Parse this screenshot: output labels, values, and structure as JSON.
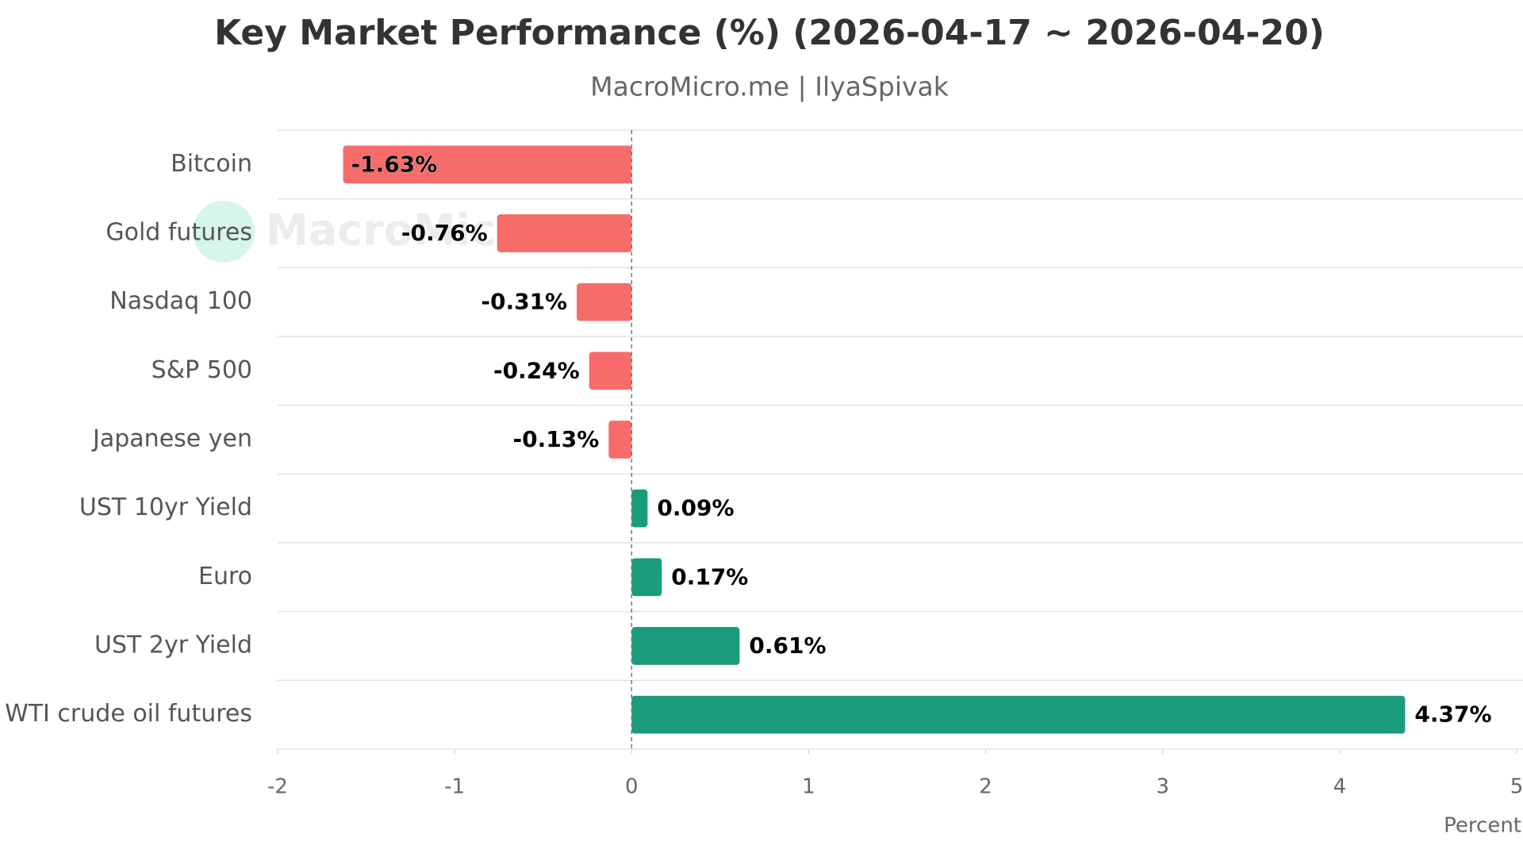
{
  "chart_data": {
    "type": "hbar",
    "title": "Key Market Performance (%) (2026-04-17 ~ 2026-04-20)",
    "subtitle": "MacroMicro.me | IlyaSpivak",
    "watermark": "MacroMicro",
    "x_label": "Percent",
    "categories": [
      "Bitcoin",
      "Gold futures",
      "Nasdaq 100",
      "S&P 500",
      "Japanese yen",
      "UST 10yr Yield",
      "Euro",
      "UST 2yr Yield",
      "WTI crude oil futures"
    ],
    "values": [
      -1.63,
      -0.76,
      -0.31,
      -0.24,
      -0.13,
      0.09,
      0.17,
      0.61,
      4.37
    ],
    "value_labels": [
      "-1.63%",
      "-0.76%",
      "-0.31%",
      "-0.24%",
      "-0.13%",
      "0.09%",
      "0.17%",
      "0.61%",
      "4.37%"
    ],
    "colors": [
      "#f76b6b",
      "#f76b6b",
      "#f76b6b",
      "#f76b6b",
      "#f76b6b",
      "#1a9c7c",
      "#1a9c7c",
      "#1a9c7c",
      "#1a9c7c"
    ],
    "xlim": [
      -2,
      5
    ],
    "xticks": [
      -2,
      -1,
      0,
      1,
      2,
      3,
      4,
      5
    ]
  }
}
